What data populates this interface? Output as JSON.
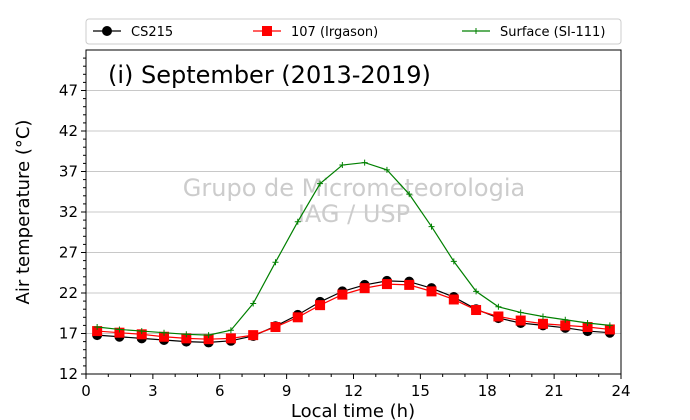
{
  "chart_data": {
    "type": "line",
    "title": "(i) September (2013-2019)",
    "xlabel": "Local time (h)",
    "ylabel": "Air temperature (°C)",
    "xlim": [
      0,
      24
    ],
    "ylim": [
      12,
      52
    ],
    "xticks": [
      0,
      3,
      6,
      9,
      12,
      15,
      18,
      21,
      24
    ],
    "yticks": [
      12,
      17,
      22,
      27,
      32,
      37,
      42,
      47
    ],
    "grid": "horizontal",
    "legend_position": "top",
    "watermark": [
      "Grupo de Micrometeorologia",
      "IAG / USP"
    ],
    "x": [
      0.5,
      1.5,
      2.5,
      3.5,
      4.5,
      5.5,
      6.5,
      7.5,
      8.5,
      9.5,
      10.5,
      11.5,
      12.5,
      13.5,
      14.5,
      15.5,
      16.5,
      17.5,
      18.5,
      19.5,
      20.5,
      21.5,
      22.5,
      23.5
    ],
    "series": [
      {
        "name": "CS215",
        "color": "#000000",
        "marker": "circle",
        "values": [
          16.8,
          16.6,
          16.4,
          16.2,
          16.0,
          15.9,
          16.1,
          16.7,
          17.9,
          19.3,
          20.9,
          22.2,
          23.0,
          23.5,
          23.4,
          22.6,
          21.5,
          20.0,
          18.9,
          18.3,
          18.0,
          17.7,
          17.3,
          17.1
        ]
      },
      {
        "name": "107 (Irgason)",
        "color": "#ff0000",
        "marker": "square",
        "values": [
          17.3,
          17.1,
          16.9,
          16.6,
          16.4,
          16.3,
          16.4,
          16.8,
          17.8,
          19.0,
          20.5,
          21.8,
          22.6,
          23.1,
          23.0,
          22.2,
          21.2,
          19.9,
          19.1,
          18.6,
          18.2,
          18.0,
          17.8,
          17.5
        ]
      },
      {
        "name": "Surface (SI-111)",
        "color": "#008000",
        "marker": "plus",
        "values": [
          17.8,
          17.5,
          17.3,
          17.1,
          16.9,
          16.8,
          17.4,
          20.7,
          25.8,
          30.8,
          35.5,
          37.8,
          38.1,
          37.2,
          34.2,
          30.2,
          25.9,
          22.2,
          20.3,
          19.6,
          19.1,
          18.7,
          18.3,
          18.0
        ]
      }
    ]
  }
}
